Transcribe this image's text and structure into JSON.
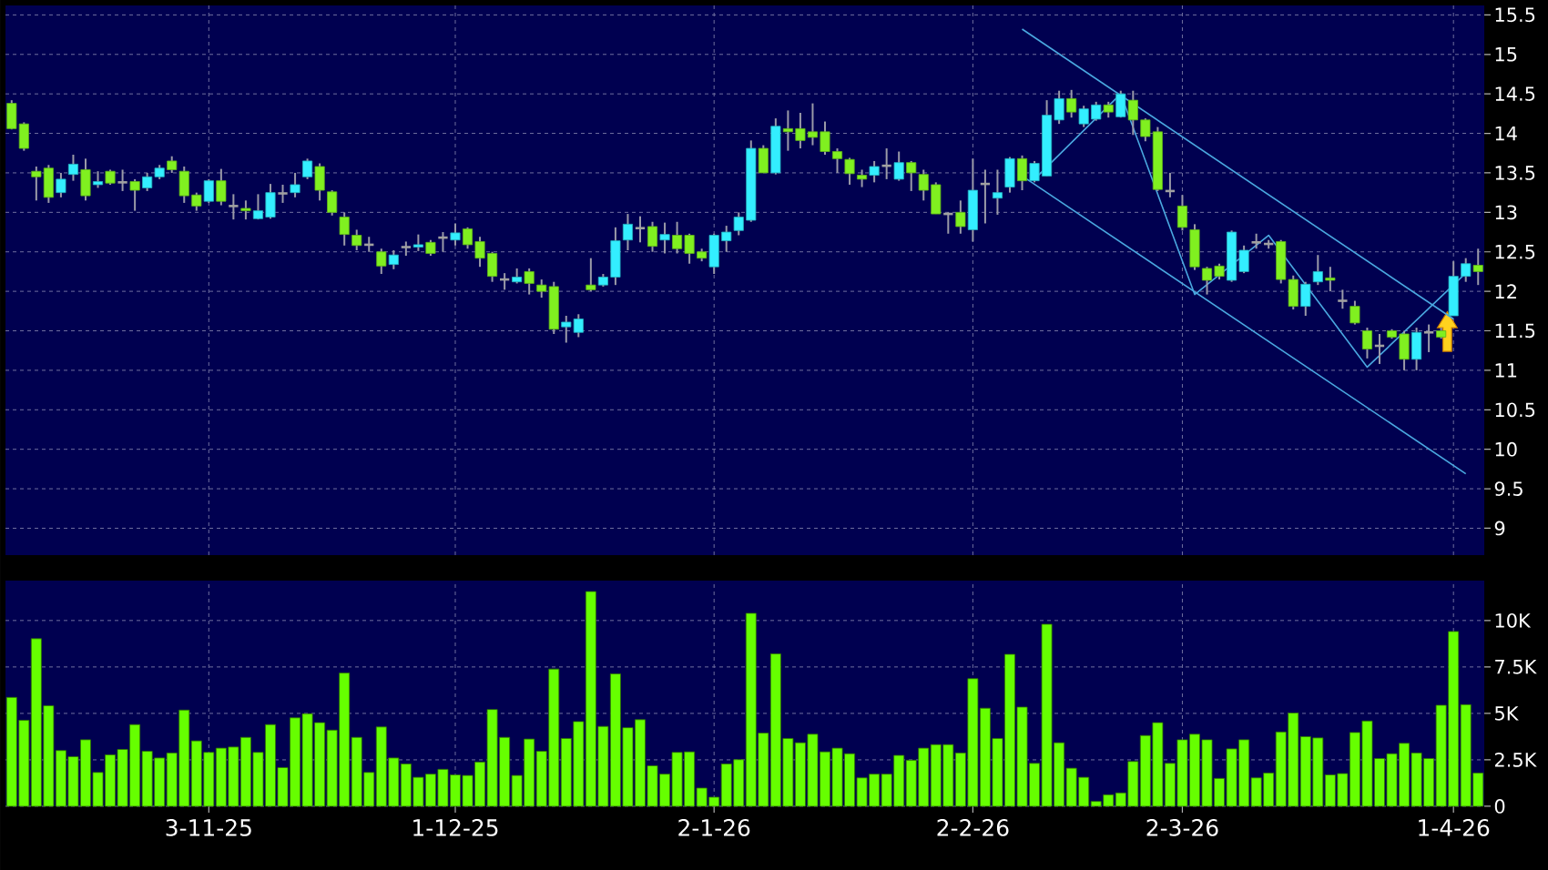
{
  "chart_data": [
    {
      "type": "candlestick",
      "categories": [
        null,
        null,
        null,
        null,
        null,
        null,
        null,
        null,
        null,
        null,
        null,
        null,
        null,
        null,
        null,
        null,
        null,
        null,
        null,
        null,
        null,
        null,
        null,
        null,
        null,
        null,
        null,
        null,
        null,
        null,
        null,
        null,
        null,
        null,
        null,
        null,
        null,
        null,
        null,
        null,
        null,
        null,
        null,
        null,
        null,
        null,
        null,
        null,
        null,
        null,
        null,
        null,
        null,
        null,
        null,
        null,
        null,
        null,
        null,
        null,
        null,
        null,
        null,
        null,
        null,
        null,
        null,
        null,
        null,
        null,
        null,
        null,
        null,
        null,
        null,
        null,
        null,
        null,
        null,
        null,
        null,
        null,
        null,
        null,
        null,
        null,
        null,
        null,
        null,
        null,
        null,
        null,
        null,
        null,
        null,
        null,
        null,
        null,
        null,
        null,
        null,
        null,
        null,
        null,
        null,
        null,
        null,
        null,
        null,
        null,
        null,
        null,
        null,
        null,
        null,
        null,
        null,
        null,
        null,
        null
      ],
      "ohlc": [
        [
          14.38,
          14.42,
          14.05,
          14.06
        ],
        [
          14.12,
          14.14,
          13.78,
          13.81
        ],
        [
          13.52,
          13.58,
          13.15,
          13.45
        ],
        [
          13.56,
          13.6,
          13.12,
          13.19
        ],
        [
          13.25,
          13.5,
          13.19,
          13.42
        ],
        [
          13.48,
          13.73,
          13.4,
          13.61
        ],
        [
          13.54,
          13.68,
          13.15,
          13.21
        ],
        [
          13.35,
          13.52,
          13.31,
          13.39
        ],
        [
          13.52,
          13.54,
          13.35,
          13.37
        ],
        [
          13.38,
          13.54,
          13.27,
          13.38
        ],
        [
          13.39,
          13.42,
          13.02,
          13.28
        ],
        [
          13.31,
          13.5,
          13.27,
          13.45
        ],
        [
          13.45,
          13.6,
          13.42,
          13.56
        ],
        [
          13.65,
          13.71,
          13.5,
          13.54
        ],
        [
          13.52,
          13.58,
          13.12,
          13.21
        ],
        [
          13.22,
          13.25,
          13.02,
          13.08
        ],
        [
          13.14,
          13.42,
          13.12,
          13.4
        ],
        [
          13.4,
          13.55,
          13.09,
          13.14
        ],
        [
          13.08,
          13.23,
          12.91,
          13.08
        ],
        [
          13.05,
          13.15,
          12.91,
          13.02
        ],
        [
          12.92,
          13.23,
          12.91,
          13.02
        ],
        [
          12.94,
          13.36,
          12.92,
          13.25
        ],
        [
          13.24,
          13.35,
          13.12,
          13.24
        ],
        [
          13.25,
          13.5,
          13.19,
          13.35
        ],
        [
          13.45,
          13.68,
          13.42,
          13.65
        ],
        [
          13.58,
          13.62,
          13.15,
          13.28
        ],
        [
          13.26,
          13.28,
          12.96,
          13.0
        ],
        [
          12.94,
          13.0,
          12.58,
          12.72
        ],
        [
          12.71,
          12.78,
          12.52,
          12.58
        ],
        [
          12.59,
          12.69,
          12.5,
          12.59
        ],
        [
          12.5,
          12.54,
          12.22,
          12.32
        ],
        [
          12.34,
          12.52,
          12.28,
          12.46
        ],
        [
          12.56,
          12.63,
          12.45,
          12.56
        ],
        [
          12.56,
          12.72,
          12.51,
          12.59
        ],
        [
          12.62,
          12.65,
          12.45,
          12.48
        ],
        [
          12.68,
          12.75,
          12.5,
          12.68
        ],
        [
          12.65,
          12.86,
          12.58,
          12.74
        ],
        [
          12.79,
          12.81,
          12.54,
          12.59
        ],
        [
          12.63,
          12.69,
          12.31,
          12.42
        ],
        [
          12.48,
          12.5,
          12.12,
          12.19
        ],
        [
          12.15,
          12.23,
          12.02,
          12.15
        ],
        [
          12.12,
          12.29,
          12.1,
          12.18
        ],
        [
          12.25,
          12.29,
          11.96,
          12.1
        ],
        [
          12.08,
          12.15,
          11.92,
          12.0
        ],
        [
          12.06,
          12.12,
          11.46,
          11.52
        ],
        [
          11.55,
          11.69,
          11.35,
          11.61
        ],
        [
          11.48,
          11.71,
          11.42,
          11.65
        ],
        [
          12.08,
          12.42,
          12.0,
          12.02
        ],
        [
          12.08,
          12.22,
          12.06,
          12.18
        ],
        [
          12.18,
          12.81,
          12.08,
          12.64
        ],
        [
          12.65,
          12.98,
          12.52,
          12.85
        ],
        [
          12.8,
          12.95,
          12.62,
          12.8
        ],
        [
          12.82,
          12.88,
          12.5,
          12.57
        ],
        [
          12.65,
          12.87,
          12.48,
          12.72
        ],
        [
          12.71,
          12.88,
          12.48,
          12.54
        ],
        [
          12.71,
          12.73,
          12.35,
          12.48
        ],
        [
          12.5,
          12.54,
          12.38,
          12.42
        ],
        [
          12.31,
          12.73,
          12.22,
          12.71
        ],
        [
          12.64,
          12.83,
          12.5,
          12.75
        ],
        [
          12.77,
          13.0,
          12.71,
          12.94
        ],
        [
          12.9,
          13.91,
          12.88,
          13.81
        ],
        [
          13.81,
          13.85,
          13.5,
          13.5
        ],
        [
          13.5,
          14.19,
          13.48,
          14.09
        ],
        [
          14.06,
          14.29,
          13.78,
          14.02
        ],
        [
          14.06,
          14.26,
          13.81,
          13.91
        ],
        [
          14.02,
          14.38,
          13.85,
          13.95
        ],
        [
          14.02,
          14.15,
          13.73,
          13.77
        ],
        [
          13.77,
          13.81,
          13.5,
          13.68
        ],
        [
          13.67,
          13.69,
          13.35,
          13.49
        ],
        [
          13.47,
          13.54,
          13.32,
          13.42
        ],
        [
          13.47,
          13.65,
          13.38,
          13.58
        ],
        [
          13.59,
          13.81,
          13.42,
          13.59
        ],
        [
          13.42,
          13.77,
          13.4,
          13.63
        ],
        [
          13.63,
          13.65,
          13.27,
          13.5
        ],
        [
          13.48,
          13.54,
          13.15,
          13.28
        ],
        [
          13.35,
          13.38,
          12.98,
          12.98
        ],
        [
          12.98,
          13.0,
          12.73,
          12.98
        ],
        [
          13.0,
          13.15,
          12.73,
          12.82
        ],
        [
          12.78,
          13.68,
          12.63,
          13.28
        ],
        [
          13.36,
          13.54,
          12.86,
          13.36
        ],
        [
          13.18,
          13.54,
          12.97,
          13.25
        ],
        [
          13.32,
          13.7,
          13.25,
          13.68
        ],
        [
          13.68,
          13.72,
          13.28,
          13.4
        ],
        [
          13.4,
          13.65,
          13.38,
          13.62
        ],
        [
          13.46,
          14.42,
          13.46,
          14.23
        ],
        [
          14.17,
          14.54,
          14.12,
          14.44
        ],
        [
          14.44,
          14.55,
          14.2,
          14.27
        ],
        [
          14.12,
          14.35,
          14.08,
          14.31
        ],
        [
          14.18,
          14.4,
          14.16,
          14.36
        ],
        [
          14.36,
          14.4,
          14.2,
          14.27
        ],
        [
          14.21,
          14.54,
          14.2,
          14.5
        ],
        [
          14.42,
          14.54,
          13.98,
          14.17
        ],
        [
          14.17,
          14.19,
          13.9,
          13.96
        ],
        [
          14.02,
          14.08,
          13.27,
          13.29
        ],
        [
          13.27,
          13.5,
          13.19,
          13.27
        ],
        [
          13.08,
          13.22,
          12.77,
          12.81
        ],
        [
          12.78,
          12.85,
          12.27,
          12.31
        ],
        [
          12.29,
          12.31,
          11.96,
          12.14
        ],
        [
          12.32,
          12.35,
          12.15,
          12.19
        ],
        [
          12.14,
          12.77,
          12.12,
          12.75
        ],
        [
          12.25,
          12.58,
          12.23,
          12.52
        ],
        [
          12.62,
          12.73,
          12.54,
          12.62
        ],
        [
          12.6,
          12.65,
          12.54,
          12.6
        ],
        [
          12.63,
          12.65,
          12.1,
          12.15
        ],
        [
          12.15,
          12.2,
          11.77,
          11.81
        ],
        [
          11.81,
          12.12,
          11.69,
          12.09
        ],
        [
          12.12,
          12.46,
          12.08,
          12.25
        ],
        [
          12.17,
          12.31,
          12.0,
          12.14
        ],
        [
          11.88,
          12.02,
          11.78,
          11.88
        ],
        [
          11.81,
          11.88,
          11.58,
          11.6
        ],
        [
          11.5,
          11.54,
          11.15,
          11.27
        ],
        [
          11.31,
          11.46,
          11.08,
          11.31
        ],
        [
          11.5,
          11.52,
          11.4,
          11.42
        ],
        [
          11.46,
          11.5,
          11.0,
          11.14
        ],
        [
          11.14,
          11.54,
          11.0,
          11.48
        ],
        [
          11.48,
          11.58,
          11.23,
          11.48
        ],
        [
          11.5,
          11.54,
          11.4,
          11.42
        ],
        [
          11.69,
          12.38,
          11.69,
          12.19
        ],
        [
          12.19,
          12.42,
          12.12,
          12.35
        ],
        [
          12.33,
          12.54,
          12.08,
          12.25
        ]
      ],
      "colors": [
        "#80f020",
        "#80f020",
        "#80f020",
        "#80f020",
        "#33eeff",
        "#33eeff",
        "#80f020",
        "#33eeff",
        "#80f020",
        "#a0a0a0",
        "#80f020",
        "#33eeff",
        "#33eeff",
        "#80f020",
        "#80f020",
        "#80f020",
        "#33eeff",
        "#80f020",
        "#a0a0a0",
        "#80f020",
        "#33eeff",
        "#33eeff",
        "#a0a0a0",
        "#33eeff",
        "#33eeff",
        "#80f020",
        "#80f020",
        "#80f020",
        "#80f020",
        "#a0a0a0",
        "#80f020",
        "#33eeff",
        "#a0a0a0",
        "#33eeff",
        "#80f020",
        "#a0a0a0",
        "#33eeff",
        "#80f020",
        "#80f020",
        "#80f020",
        "#a0a0a0",
        "#33eeff",
        "#80f020",
        "#80f020",
        "#80f020",
        "#33eeff",
        "#33eeff",
        "#80f020",
        "#33eeff",
        "#33eeff",
        "#33eeff",
        "#a0a0a0",
        "#80f020",
        "#33eeff",
        "#80f020",
        "#80f020",
        "#80f020",
        "#33eeff",
        "#33eeff",
        "#33eeff",
        "#33eeff",
        "#80f020",
        "#33eeff",
        "#80f020",
        "#80f020",
        "#80f020",
        "#80f020",
        "#80f020",
        "#80f020",
        "#80f020",
        "#33eeff",
        "#a0a0a0",
        "#33eeff",
        "#80f020",
        "#80f020",
        "#80f020",
        "#a0a0a0",
        "#80f020",
        "#33eeff",
        "#a0a0a0",
        "#33eeff",
        "#33eeff",
        "#80f020",
        "#33eeff",
        "#33eeff",
        "#33eeff",
        "#80f020",
        "#33eeff",
        "#33eeff",
        "#80f020",
        "#33eeff",
        "#80f020",
        "#80f020",
        "#80f020",
        "#a0a0a0",
        "#80f020",
        "#80f020",
        "#80f020",
        "#80f020",
        "#33eeff",
        "#33eeff",
        "#a0a0a0",
        "#a0a0a0",
        "#80f020",
        "#80f020",
        "#33eeff",
        "#33eeff",
        "#80f020",
        "#a0a0a0",
        "#80f020",
        "#80f020",
        "#a0a0a0",
        "#80f020",
        "#80f020",
        "#33eeff",
        "#a0a0a0",
        "#80f020",
        "#33eeff",
        "#33eeff",
        "#80f020"
      ],
      "series": [
        {
          "type": "line",
          "color": "#4aa8e0",
          "values": [
            null,
            null,
            null,
            null,
            null,
            null,
            null,
            null,
            null,
            null,
            null,
            null,
            null,
            null,
            null,
            null,
            null,
            null,
            null,
            null,
            null,
            null,
            null,
            null,
            null,
            null,
            null,
            null,
            null,
            null,
            null,
            null,
            null,
            null,
            null,
            null,
            null,
            null,
            null,
            null,
            null,
            null,
            null,
            null,
            null,
            null,
            null,
            null,
            null,
            null,
            null,
            null,
            null,
            null,
            null,
            null,
            null,
            null,
            null,
            null,
            null,
            null,
            null,
            null,
            null,
            null,
            null,
            null,
            null,
            null,
            null,
            null,
            null,
            null,
            null,
            null,
            null,
            null,
            null,
            null,
            null,
            null,
            15.32,
            null,
            null,
            null,
            null,
            null,
            null,
            null,
            null,
            null,
            null,
            null,
            null,
            null,
            null,
            null,
            null,
            null,
            null,
            null,
            null,
            null,
            null,
            null,
            null,
            null,
            null,
            null,
            null,
            null,
            null,
            null,
            null,
            null,
            null,
            11.65,
            null,
            null
          ]
        },
        {
          "type": "line",
          "color": "#4aa8e0",
          "values": [
            null,
            null,
            null,
            null,
            null,
            null,
            null,
            null,
            null,
            null,
            null,
            null,
            null,
            null,
            null,
            null,
            null,
            null,
            null,
            null,
            null,
            null,
            null,
            null,
            null,
            null,
            null,
            null,
            null,
            null,
            null,
            null,
            null,
            null,
            null,
            null,
            null,
            null,
            null,
            null,
            null,
            null,
            null,
            null,
            null,
            null,
            null,
            null,
            null,
            null,
            null,
            null,
            null,
            null,
            null,
            null,
            null,
            null,
            null,
            null,
            null,
            null,
            null,
            null,
            null,
            null,
            null,
            null,
            null,
            null,
            null,
            null,
            null,
            null,
            null,
            null,
            null,
            null,
            null,
            null,
            null,
            null,
            13.46,
            null,
            null,
            null,
            null,
            null,
            null,
            null,
            null,
            null,
            null,
            null,
            null,
            null,
            null,
            null,
            null,
            null,
            null,
            null,
            null,
            null,
            null,
            null,
            null,
            null,
            null,
            null,
            null,
            null,
            null,
            null,
            null,
            null,
            null,
            null,
            9.69,
            null
          ]
        },
        {
          "type": "line",
          "color": "#4aa8e0",
          "values": [
            null,
            null,
            null,
            null,
            null,
            null,
            null,
            null,
            null,
            null,
            null,
            null,
            null,
            null,
            null,
            null,
            null,
            null,
            null,
            null,
            null,
            null,
            null,
            null,
            null,
            null,
            null,
            null,
            null,
            null,
            null,
            null,
            null,
            null,
            null,
            null,
            null,
            null,
            null,
            null,
            null,
            null,
            null,
            null,
            null,
            null,
            null,
            null,
            null,
            null,
            null,
            null,
            null,
            null,
            null,
            null,
            null,
            null,
            null,
            null,
            null,
            null,
            null,
            null,
            null,
            null,
            null,
            null,
            null,
            null,
            null,
            null,
            null,
            null,
            null,
            null,
            null,
            null,
            null,
            null,
            null,
            null,
            null,
            13.42,
            null,
            null,
            null,
            null,
            null,
            null,
            14.5,
            null,
            null,
            null,
            null,
            null,
            11.96,
            null,
            null,
            null,
            null,
            null,
            12.71,
            null,
            null,
            null,
            null,
            null,
            null,
            null,
            11.04,
            null,
            null,
            null,
            null,
            null,
            null,
            null,
            12.23,
            null
          ]
        }
      ],
      "ylim": [
        8.66,
        15.62
      ],
      "yticks": [
        9,
        9.5,
        10,
        10.5,
        11,
        11.5,
        12,
        12.5,
        13,
        13.5,
        14,
        14.5,
        15,
        15.5
      ],
      "grid": true,
      "tick_labels": "y"
    },
    {
      "type": "bar",
      "categories": [
        null,
        null,
        null,
        null,
        null,
        null,
        null,
        null,
        null,
        null,
        null,
        null,
        null,
        null,
        null,
        null,
        "3-11-25",
        null,
        null,
        null,
        null,
        null,
        null,
        null,
        null,
        null,
        null,
        null,
        null,
        null,
        null,
        null,
        null,
        null,
        null,
        null,
        "1-12-25",
        null,
        null,
        null,
        null,
        null,
        null,
        null,
        null,
        null,
        null,
        null,
        null,
        null,
        null,
        null,
        null,
        null,
        null,
        null,
        null,
        "2-1-26",
        null,
        null,
        null,
        null,
        null,
        null,
        null,
        null,
        null,
        null,
        null,
        null,
        null,
        null,
        null,
        null,
        null,
        null,
        null,
        null,
        "2-2-26",
        null,
        null,
        null,
        null,
        null,
        null,
        null,
        null,
        null,
        null,
        null,
        null,
        null,
        null,
        null,
        null,
        "2-3-26",
        null,
        null,
        null,
        null,
        null,
        null,
        null,
        null,
        null,
        null,
        null,
        null,
        null,
        null,
        null,
        null,
        null,
        null,
        null,
        null,
        null,
        "1-4-26",
        null,
        null
      ],
      "values": [
        5.86,
        4.63,
        9.02,
        5.41,
        3.0,
        2.67,
        3.58,
        1.82,
        2.77,
        3.06,
        4.4,
        2.96,
        2.6,
        2.87,
        5.18,
        3.52,
        2.9,
        3.13,
        3.19,
        3.71,
        2.9,
        4.4,
        2.08,
        4.76,
        4.98,
        4.5,
        4.1,
        7.17,
        3.71,
        1.82,
        4.27,
        2.6,
        2.28,
        1.56,
        1.73,
        1.99,
        1.69,
        1.66,
        2.38,
        5.21,
        3.71,
        1.66,
        3.62,
        2.96,
        7.39,
        3.65,
        4.56,
        11.56,
        4.3,
        7.13,
        4.23,
        4.66,
        2.18,
        1.73,
        2.9,
        2.93,
        0.98,
        0.49,
        2.28,
        2.51,
        10.39,
        3.94,
        8.21,
        3.65,
        3.42,
        3.88,
        2.93,
        3.13,
        2.83,
        1.53,
        1.73,
        1.73,
        2.74,
        2.48,
        3.13,
        3.32,
        3.32,
        2.87,
        6.87,
        5.28,
        3.65,
        8.18,
        5.34,
        2.31,
        9.8,
        3.42,
        2.05,
        1.56,
        0.26,
        0.62,
        0.72,
        2.41,
        3.81,
        4.5,
        2.31,
        3.58,
        3.88,
        3.58,
        1.5,
        3.09,
        3.58,
        1.53,
        1.79,
        4.0,
        5.02,
        3.75,
        3.68,
        1.69,
        1.76,
        3.97,
        4.59,
        2.57,
        2.83,
        3.39,
        2.87,
        2.57,
        5.44,
        9.41,
        5.47,
        1.79
      ],
      "color": "#66ff00",
      "ylim": [
        0,
        12.15
      ],
      "yticks": [
        0,
        {
          "value": 2.5,
          "label": "2.5K"
        },
        {
          "value": 5,
          "label": "5K"
        },
        {
          "value": 7.5,
          "label": "7.5K"
        },
        {
          "value": 10,
          "label": "10K"
        }
      ],
      "grid": true
    }
  ]
}
